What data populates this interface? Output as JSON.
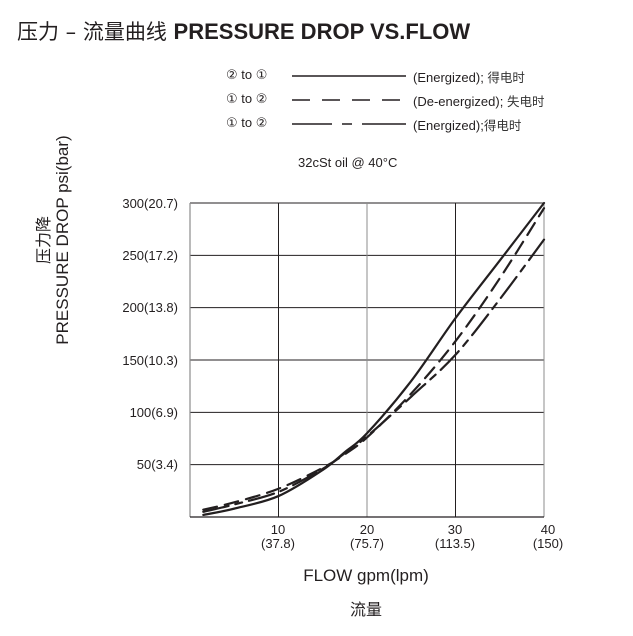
{
  "title": {
    "cn": "压力 – 流量曲线 ",
    "en": "PRESSURE DROP VS.FLOW"
  },
  "legend": [
    {
      "direction": "② to ①",
      "style": "solid",
      "desc_en": "(Energized); ",
      "desc_cn": "得电时"
    },
    {
      "direction": "① to ②",
      "style": "dashed",
      "desc_en": "(De-energized); ",
      "desc_cn": "失电时"
    },
    {
      "direction": "① to ②",
      "style": "long-short-dash",
      "desc_en": "(Energized);",
      "desc_cn": "得电时"
    }
  ],
  "condition": "32cSt  oil @ 40°C",
  "axes": {
    "ylabel_cn": "压力降",
    "ylabel_en": "PRESSURE DROP psi(bar)",
    "xlabel_en": "FLOW gpm(lpm)",
    "xlabel_cn": "流量",
    "yticks": [
      "300(20.7)",
      "250(17.2)",
      "200(13.8)",
      "150(10.3)",
      "100(6.9)",
      "50(3.4)"
    ],
    "xticks": [
      {
        "gpm": "10",
        "lpm": "(37.8)"
      },
      {
        "gpm": "20",
        "lpm": "(75.7)"
      },
      {
        "gpm": "30",
        "lpm": "(113.5)"
      },
      {
        "gpm": "40",
        "lpm": "(150)"
      }
    ]
  },
  "colors": {
    "line": "#231f20",
    "grid": "#231f20",
    "grid_light": "#8c8c8c"
  },
  "chart_data": {
    "type": "line",
    "title": "压力 – 流量曲线 PRESSURE DROP VS.FLOW",
    "subtitle": "32cSt oil @ 40°C",
    "xlabel": "FLOW gpm(lpm)",
    "ylabel": "PRESSURE DROP psi(bar)",
    "xlim": [
      0,
      40
    ],
    "ylim": [
      0,
      300
    ],
    "grid": true,
    "legend_position": "top",
    "x_ticks": [
      10,
      20,
      30,
      40
    ],
    "x_tick_labels": [
      "10 (37.8)",
      "20 (75.7)",
      "30 (113.5)",
      "40 (150)"
    ],
    "y_ticks": [
      50,
      100,
      150,
      200,
      250,
      300
    ],
    "y_tick_labels": [
      "50(3.4)",
      "100(6.9)",
      "150(10.3)",
      "200(13.8)",
      "250(17.2)",
      "300(20.7)"
    ],
    "x": [
      1.5,
      5,
      10,
      15,
      17.5,
      20,
      25,
      30,
      35,
      40
    ],
    "series": [
      {
        "name": "② to ① (Energized); 得电时",
        "style": "solid",
        "values": [
          2,
          8,
          20,
          45,
          62,
          80,
          130,
          190,
          245,
          300
        ]
      },
      {
        "name": "① to ② (De-energized); 失电时",
        "style": "dashed",
        "values": [
          7,
          14,
          27,
          47,
          60,
          76,
          118,
          168,
          228,
          295
        ]
      },
      {
        "name": "① to ② (Energized); 得电时",
        "style": "long-short-dash",
        "values": [
          5,
          12,
          24,
          46,
          61,
          77,
          115,
          155,
          208,
          265
        ]
      }
    ]
  }
}
